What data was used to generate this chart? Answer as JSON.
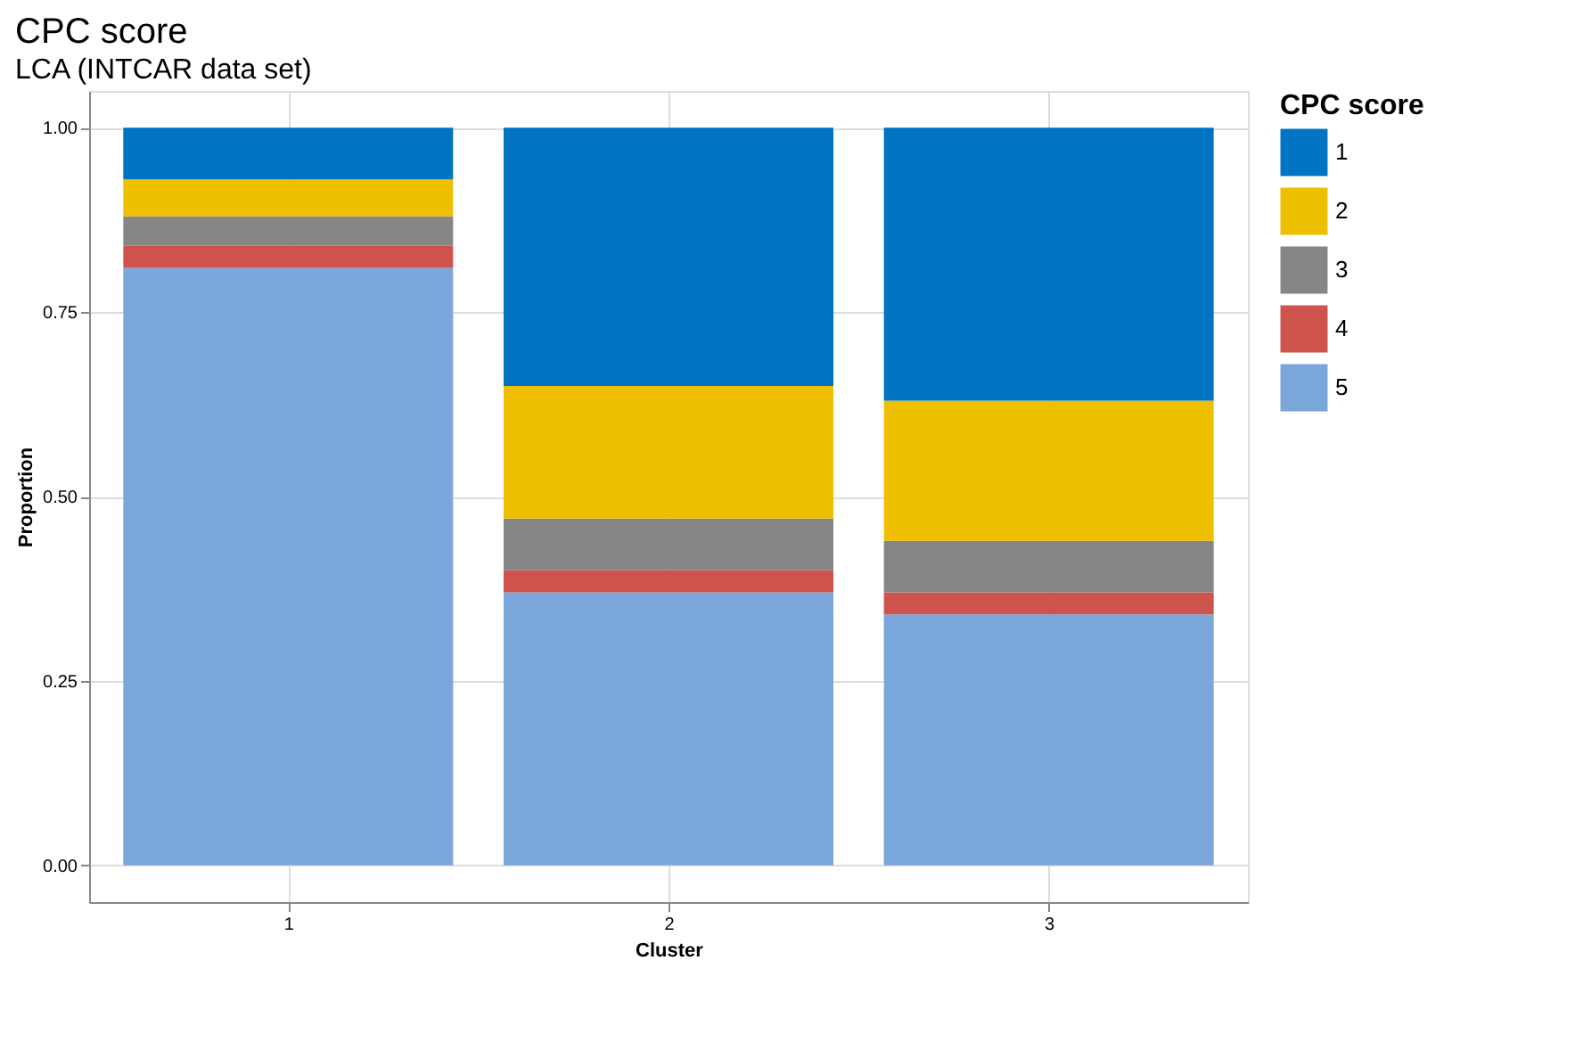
{
  "chart_data": {
    "type": "bar",
    "title": "CPC score",
    "subtitle": "LCA (INTCAR data set)",
    "xlabel": "Cluster",
    "ylabel": "Proportion",
    "legend_title": "CPC score",
    "categories": [
      "1",
      "2",
      "3"
    ],
    "stacked": true,
    "series": [
      {
        "name": "5",
        "color": "#7ba6da",
        "values": [
          0.81,
          0.37,
          0.34
        ]
      },
      {
        "name": "4",
        "color": "#cd534c",
        "values": [
          0.03,
          0.03,
          0.03
        ]
      },
      {
        "name": "3",
        "color": "#868686",
        "values": [
          0.04,
          0.07,
          0.07
        ]
      },
      {
        "name": "2",
        "color": "#efc000",
        "values": [
          0.05,
          0.18,
          0.19
        ]
      },
      {
        "name": "1",
        "color": "#0073c2",
        "values": [
          0.07,
          0.35,
          0.37
        ]
      }
    ],
    "ylim": [
      -0.05,
      1.05
    ],
    "yticks": [
      {
        "value": 0,
        "label": "0.00"
      },
      {
        "value": 0.25,
        "label": "0.25"
      },
      {
        "value": 0.5,
        "label": "0.50"
      },
      {
        "value": 0.75,
        "label": "0.75"
      },
      {
        "value": 1,
        "label": "1.00"
      }
    ],
    "grid": true,
    "legend": "right"
  }
}
